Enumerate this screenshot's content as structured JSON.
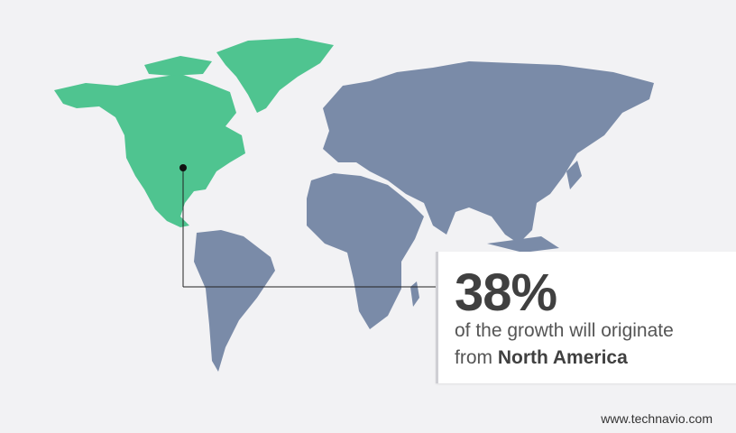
{
  "highlight": {
    "percent": "38%",
    "line1": "of the growth will originate",
    "line2_prefix": "from",
    "region": "North America"
  },
  "colors": {
    "highlighted_region": "#4fc490",
    "other_regions": "#7a8ba8",
    "background": "#f2f2f4",
    "text": "#404040"
  },
  "footer": {
    "website": "www.technavio.com"
  }
}
